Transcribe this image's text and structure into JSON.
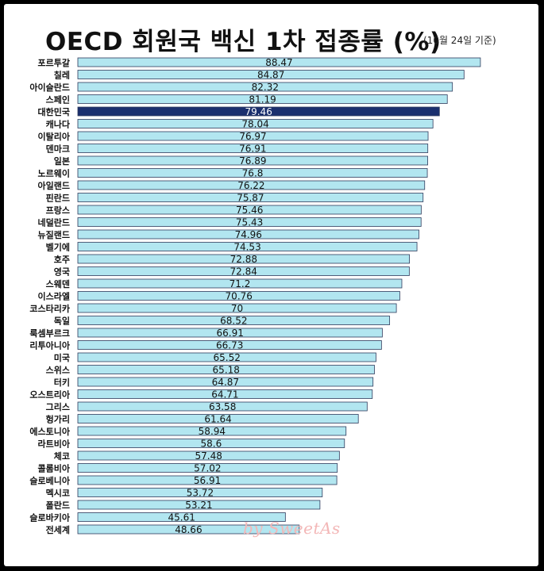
{
  "header": {
    "title": "OECD 회원국 백신 1차 접종률 (%)",
    "subtitle": "(10월 24일 기준)"
  },
  "watermark": "by SweetAs",
  "colors": {
    "bar_fill": "#b2e6f0",
    "bar_stroke": "#2e3a5c",
    "highlight_fill": "#1a2f6e",
    "highlight_text": "#ffffff",
    "label_text": "#111111"
  },
  "chart_data": {
    "type": "bar",
    "orientation": "horizontal",
    "categories": [
      "포르투갈",
      "칠레",
      "아이슬란드",
      "스페인",
      "대한민국",
      "캐나다",
      "이탈리아",
      "덴마크",
      "일본",
      "노르웨이",
      "아일랜드",
      "핀란드",
      "프랑스",
      "네덜란드",
      "뉴질랜드",
      "벨기에",
      "호주",
      "영국",
      "스웨덴",
      "이스라엘",
      "코스타리카",
      "독일",
      "룩셈부르크",
      "리투아니아",
      "미국",
      "스위스",
      "터키",
      "오스트리아",
      "그리스",
      "헝가리",
      "에스토니아",
      "라트비아",
      "체코",
      "콜롬비아",
      "슬로베니아",
      "멕시코",
      "폴란드",
      "슬로바키아",
      "전세계"
    ],
    "values": [
      88.47,
      84.87,
      82.32,
      81.19,
      79.46,
      78.04,
      76.97,
      76.91,
      76.89,
      76.8,
      76.22,
      75.87,
      75.46,
      75.43,
      74.96,
      74.53,
      72.88,
      72.84,
      71.2,
      70.76,
      70,
      68.52,
      66.91,
      66.73,
      65.52,
      65.18,
      64.87,
      64.71,
      63.58,
      61.64,
      58.94,
      58.6,
      57.48,
      57.02,
      56.91,
      53.72,
      53.21,
      45.61,
      48.66
    ],
    "highlight": "대한민국",
    "title": "OECD 회원국 백신 1차 접종률 (%)",
    "subtitle": "(10월 24일 기준)",
    "xlabel": "",
    "ylabel": "",
    "grid": false,
    "legend": "none"
  }
}
